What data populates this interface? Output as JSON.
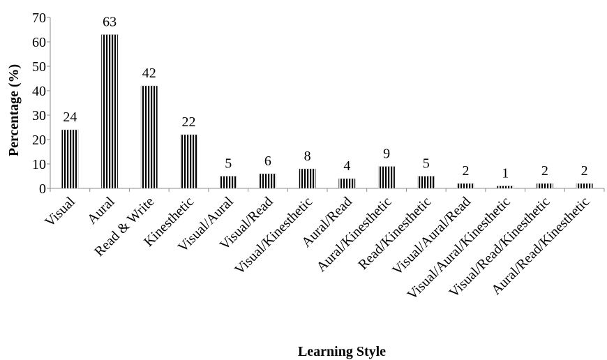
{
  "chart_data": {
    "type": "bar",
    "categories": [
      "Visual",
      "Aural",
      "Read & Write",
      "Kinesthetic",
      "Visual/Aural",
      "Visual/Read",
      "Visual/Kinesthetic",
      "Aural/Read",
      "Aural/Kinesthetic",
      "Read/Kinesthetic",
      "Visual/Aural/Read",
      "Visual/Aural/Kinesthetic",
      "Visual/Read/Kinesthetic",
      "Aural/Read/Kinesthetic"
    ],
    "values": [
      24,
      63,
      42,
      22,
      5,
      6,
      8,
      4,
      9,
      5,
      2,
      1,
      2,
      2
    ],
    "data_labels": [
      "24",
      "63",
      "42",
      "22",
      "5",
      "6",
      "8",
      "4",
      "9",
      "5",
      "2",
      "1",
      "2",
      "2"
    ],
    "title": "",
    "xlabel": "Learning Style",
    "ylabel": "Percentage (%)",
    "ylim": [
      0,
      70
    ],
    "yticks": [
      "0",
      "10",
      "20",
      "30",
      "40",
      "50",
      "60",
      "70"
    ],
    "grid": false,
    "legend": "none",
    "bar_color": "#000000",
    "bar_pattern": "vertical-stripes"
  }
}
